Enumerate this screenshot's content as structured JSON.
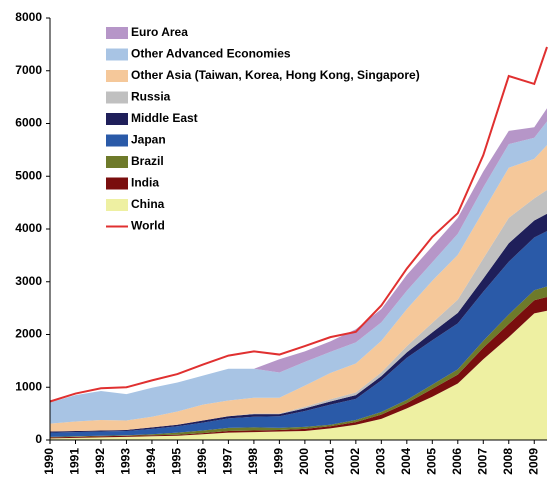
{
  "chart_data": {
    "type": "stacked_area",
    "x": [
      1990,
      1991,
      1992,
      1993,
      1994,
      1995,
      1996,
      1997,
      1998,
      1999,
      2000,
      2001,
      2002,
      2003,
      2004,
      2005,
      2006,
      2007,
      2008,
      2009,
      2009.5
    ],
    "xlim": [
      1990,
      2009.5
    ],
    "xticks": [
      1990,
      1991,
      1992,
      1993,
      1994,
      1995,
      1996,
      1997,
      1998,
      1999,
      2000,
      2001,
      2002,
      2003,
      2004,
      2005,
      2006,
      2007,
      2008,
      2009
    ],
    "ylim": [
      0,
      8000
    ],
    "yticks": [
      0,
      1000,
      2000,
      3000,
      4000,
      5000,
      6000,
      7000,
      8000
    ],
    "grid": false,
    "series": [
      {
        "name": "China",
        "color": "#eef0a2",
        "values": [
          30,
          40,
          50,
          60,
          70,
          80,
          110,
          140,
          150,
          160,
          170,
          220,
          290,
          400,
          600,
          820,
          1070,
          1530,
          1950,
          2400,
          2450
        ]
      },
      {
        "name": "India",
        "color": "#7a0e0e",
        "values": [
          20,
          20,
          20,
          20,
          20,
          20,
          20,
          30,
          30,
          30,
          40,
          40,
          50,
          80,
          100,
          150,
          170,
          220,
          250,
          250,
          260
        ]
      },
      {
        "name": "Brazil",
        "color": "#6e7a2a",
        "values": [
          10,
          10,
          10,
          10,
          20,
          40,
          50,
          60,
          60,
          40,
          40,
          30,
          40,
          50,
          60,
          80,
          100,
          130,
          180,
          190,
          200
        ]
      },
      {
        "name": "Japan",
        "color": "#2a5aa8",
        "values": [
          80,
          80,
          80,
          80,
          100,
          120,
          150,
          180,
          200,
          220,
          300,
          380,
          400,
          600,
          800,
          840,
          870,
          930,
          1000,
          1000,
          1050
        ]
      },
      {
        "name": "Middle East",
        "color": "#1f1f5a",
        "values": [
          20,
          20,
          20,
          20,
          30,
          30,
          40,
          40,
          50,
          40,
          50,
          60,
          70,
          80,
          100,
          150,
          200,
          250,
          350,
          320,
          330
        ]
      },
      {
        "name": "Russia",
        "color": "#c0c0c0",
        "values": [
          0,
          0,
          0,
          0,
          0,
          0,
          0,
          0,
          10,
          10,
          30,
          40,
          50,
          70,
          120,
          180,
          250,
          380,
          480,
          420,
          450
        ]
      },
      {
        "name": "Other Asia (Taiwan, Korea, Hong Kong, Singapore)",
        "color": "#f5c89a",
        "values": [
          150,
          180,
          200,
          180,
          200,
          250,
          300,
          300,
          300,
          300,
          400,
          500,
          550,
          600,
          700,
          800,
          850,
          900,
          950,
          750,
          850
        ]
      },
      {
        "name": "Other Advanced Economies",
        "color": "#a8c4e4",
        "values": [
          400,
          500,
          550,
          500,
          550,
          550,
          550,
          600,
          550,
          480,
          450,
          400,
          400,
          350,
          350,
          350,
          400,
          450,
          450,
          400,
          450
        ]
      },
      {
        "name": "Euro Area",
        "color": "#b696c8",
        "values": [
          0,
          0,
          0,
          0,
          0,
          0,
          0,
          0,
          0,
          250,
          200,
          200,
          250,
          250,
          300,
          300,
          300,
          300,
          250,
          200,
          250
        ]
      }
    ],
    "line": {
      "name": "World",
      "color": "#e03030",
      "values": [
        730,
        880,
        980,
        1000,
        1130,
        1250,
        1430,
        1600,
        1680,
        1620,
        1780,
        1950,
        2050,
        2550,
        3250,
        3850,
        4300,
        5400,
        6900,
        6750,
        7450
      ]
    }
  }
}
